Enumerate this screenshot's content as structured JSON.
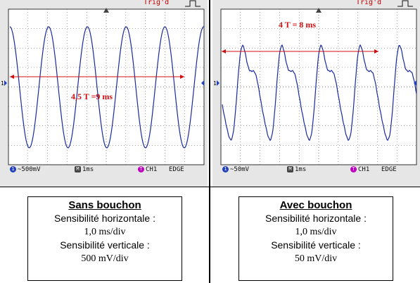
{
  "scopes": [
    {
      "trig_label": "Trig'd",
      "annotation": "4,5 T =9 ms",
      "volts_per_div": "500mV",
      "time_per_div": "1ms",
      "channel": "CH1",
      "trigger_mode": "EDGE",
      "marker": "1"
    },
    {
      "trig_label": "Trig'd",
      "annotation": "4 T = 8 ms",
      "volts_per_div": "50mV",
      "time_per_div": "1ms",
      "channel": "CH1",
      "trigger_mode": "EDGE",
      "marker": "1"
    }
  ],
  "boxes": [
    {
      "title": "Sans bouchon",
      "h_label": "Sensibilité horizontale :",
      "h_value": "1,0 ms/div",
      "v_label": "Sensibilité verticale :",
      "v_value": "500 mV/div"
    },
    {
      "title": "Avec bouchon",
      "h_label": "Sensibilité horizontale :",
      "h_value": "1,0 ms/div",
      "v_label": "Sensibilité verticale :",
      "v_value": "50 mV/div"
    }
  ],
  "colors": {
    "trace": "#1a2aa0",
    "annotation": "#d01010",
    "grid": "#555555",
    "channel_badge": "#c000c0",
    "volts_badge": "#2040c0"
  }
}
